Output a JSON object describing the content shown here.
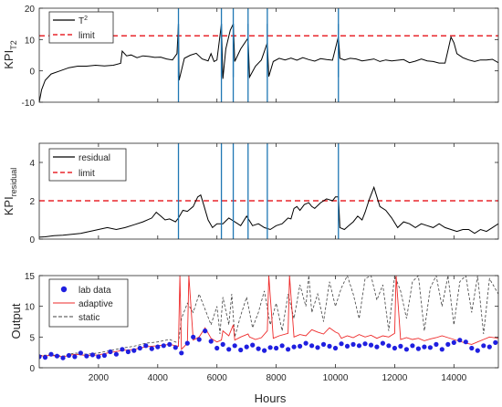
{
  "colors": {
    "axis": "#262626",
    "black_series": "#000000",
    "limit": "#e8262c",
    "vline": "#1f77b4",
    "lab_data": "#1f1fe0",
    "adaptive": "#ee2a2a",
    "static": "#404040"
  },
  "chart_data": [
    {
      "type": "line",
      "ylabel_main": "KPI",
      "ylabel_sub": "T2",
      "xlim": [
        0,
        15500
      ],
      "ylim": [
        -10,
        20
      ],
      "yticks": [
        -10,
        0,
        10,
        20
      ],
      "x_ticks_labeled": false,
      "legend_placement": "top-left",
      "legend": {
        "t2_base": "T",
        "t2_sup": "2",
        "limit": "limit"
      },
      "limit": 11.2,
      "vlines": [
        4700,
        6150,
        6550,
        7050,
        7700,
        10100
      ],
      "series": [
        {
          "name": "T²",
          "x": [
            0,
            80,
            200,
            400,
            700,
            1000,
            1300,
            1600,
            1900,
            2200,
            2500,
            2750,
            2800,
            2950,
            3100,
            3300,
            3500,
            3700,
            3900,
            4100,
            4300,
            4500,
            4650,
            4700,
            4720,
            4900,
            5100,
            5300,
            5500,
            5700,
            5800,
            5900,
            6000,
            6150,
            6200,
            6300,
            6450,
            6550,
            6600,
            6800,
            7050,
            7100,
            7300,
            7500,
            7700,
            7750,
            7900,
            8100,
            8300,
            8500,
            8700,
            8900,
            9100,
            9300,
            9500,
            9700,
            9900,
            10100,
            10150,
            10300,
            10500,
            10700,
            10900,
            11100,
            11300,
            11500,
            11700,
            11900,
            12100,
            12300,
            12500,
            12700,
            12900,
            13100,
            13300,
            13500,
            13700,
            13800,
            13900,
            14000,
            14100,
            14300,
            14500,
            14700,
            14900,
            15100,
            15300,
            15500
          ],
          "y": [
            -10,
            -6,
            -3,
            -1,
            0,
            1,
            1.5,
            1.5,
            1.8,
            1.6,
            1.8,
            2.4,
            6.3,
            4.8,
            5.1,
            4.2,
            4.8,
            4.6,
            4.3,
            4.4,
            3.8,
            3.5,
            5.5,
            15,
            -3,
            4,
            5,
            5.6,
            3.8,
            3.2,
            5.5,
            3,
            3.5,
            15,
            -2.5,
            7,
            13,
            15,
            3,
            7,
            10.5,
            -2,
            1.5,
            3.5,
            9,
            -1.8,
            3,
            4,
            3.5,
            4.1,
            3.4,
            4.2,
            3.6,
            3.1,
            3.9,
            3.6,
            3.4,
            11,
            4,
            3.5,
            4,
            3.8,
            3.2,
            3.5,
            3.8,
            3,
            3.5,
            3.2,
            3.4,
            3.6,
            2.6,
            3.1,
            3.8,
            3.2,
            3,
            2.5,
            2.5,
            6.5,
            10.8,
            9,
            5.5,
            4.2,
            3.5,
            3,
            3.5,
            3.5,
            3.7,
            2.6
          ]
        }
      ]
    },
    {
      "type": "line",
      "ylabel_main": "KPI",
      "ylabel_sub": "residual",
      "xlim": [
        0,
        15500
      ],
      "ylim": [
        0,
        5
      ],
      "yticks": [
        0,
        2,
        4
      ],
      "x_ticks_labeled": false,
      "legend_placement": "top-left",
      "legend": {
        "residual": "residual",
        "limit": "limit"
      },
      "limit": 2.0,
      "vlines": [
        4700,
        6150,
        6550,
        7050,
        7700,
        10100
      ],
      "series": [
        {
          "name": "residual",
          "x": [
            0,
            200,
            500,
            800,
            1100,
            1400,
            1700,
            2000,
            2300,
            2600,
            2900,
            3200,
            3500,
            3800,
            3950,
            4100,
            4250,
            4400,
            4600,
            4700,
            4850,
            5000,
            5200,
            5350,
            5450,
            5550,
            5700,
            5850,
            6000,
            6200,
            6400,
            6600,
            6800,
            7000,
            7200,
            7400,
            7600,
            7800,
            8000,
            8200,
            8400,
            8500,
            8600,
            8700,
            8800,
            8950,
            9100,
            9200,
            9300,
            9500,
            9700,
            9900,
            10000,
            10100,
            10150,
            10300,
            10450,
            10600,
            10750,
            10900,
            11000,
            11150,
            11300,
            11500,
            11700,
            11900,
            12100,
            12300,
            12500,
            12700,
            12900,
            13100,
            13300,
            13500,
            13700,
            13900,
            14100,
            14300,
            14500,
            14700,
            14900,
            15100,
            15300,
            15500
          ],
          "y": [
            0.1,
            0.12,
            0.18,
            0.2,
            0.25,
            0.3,
            0.4,
            0.5,
            0.6,
            0.5,
            0.6,
            0.75,
            0.9,
            1.1,
            1.4,
            1.2,
            1.0,
            1.05,
            0.9,
            1.1,
            1.5,
            1.45,
            1.7,
            2.2,
            2.3,
            1.8,
            1.0,
            0.6,
            0.8,
            0.8,
            1.1,
            0.9,
            0.7,
            1.2,
            0.7,
            0.8,
            0.6,
            0.5,
            0.7,
            0.8,
            1.1,
            1.05,
            1.6,
            1.7,
            1.5,
            1.8,
            1.9,
            1.7,
            1.6,
            1.9,
            2.1,
            2.0,
            2.2,
            2.2,
            0.6,
            0.5,
            0.7,
            0.9,
            1.2,
            1.0,
            1.4,
            2.1,
            2.7,
            1.7,
            1.5,
            1.1,
            0.6,
            0.9,
            0.8,
            0.6,
            0.8,
            0.7,
            0.6,
            0.8,
            0.6,
            0.5,
            0.4,
            0.5,
            0.5,
            0.3,
            0.5,
            0.4,
            0.6,
            0.8
          ]
        }
      ]
    },
    {
      "type": "scatter",
      "ylabel_main": "Output",
      "xlabel": "Hours",
      "xlim": [
        0,
        15500
      ],
      "ylim": [
        0,
        15
      ],
      "xticks": [
        2000,
        4000,
        6000,
        8000,
        10000,
        12000,
        14000
      ],
      "yticks": [
        0,
        5,
        10,
        15
      ],
      "legend_placement": "top-left",
      "legend": {
        "lab": "lab data",
        "adaptive": "adaptive",
        "static": "static"
      },
      "series": [
        {
          "name": "lab data",
          "x": [
            0,
            200,
            400,
            600,
            800,
            1000,
            1200,
            1400,
            1600,
            1800,
            2000,
            2200,
            2400,
            2600,
            2800,
            3000,
            3200,
            3400,
            3600,
            3800,
            4000,
            4200,
            4400,
            4600,
            4800,
            5000,
            5200,
            5400,
            5600,
            5800,
            6000,
            6200,
            6400,
            6600,
            6800,
            7000,
            7200,
            7400,
            7600,
            7800,
            8000,
            8200,
            8400,
            8600,
            8800,
            9000,
            9200,
            9400,
            9600,
            9800,
            10000,
            10200,
            10400,
            10600,
            10800,
            11000,
            11200,
            11400,
            11600,
            11800,
            12000,
            12200,
            12400,
            12600,
            12800,
            13000,
            13200,
            13400,
            13600,
            13800,
            14000,
            14200,
            14400,
            14600,
            14800,
            15000,
            15200,
            15400
          ],
          "y": [
            1.8,
            1.7,
            2.2,
            1.9,
            1.6,
            2.0,
            1.8,
            2.4,
            1.9,
            2.1,
            1.8,
            2.0,
            2.6,
            2.2,
            3.0,
            2.6,
            2.8,
            3.2,
            3.6,
            3.1,
            3.4,
            3.6,
            3.8,
            3.3,
            2.4,
            4.0,
            5.0,
            4.6,
            6.0,
            4.3,
            3.2,
            3.8,
            3.0,
            3.6,
            2.9,
            3.4,
            3.7,
            3.1,
            2.8,
            3.3,
            3.2,
            3.6,
            3.0,
            3.4,
            3.5,
            4.0,
            3.6,
            3.3,
            3.8,
            3.5,
            3.2,
            3.9,
            3.5,
            3.8,
            3.6,
            3.9,
            3.7,
            3.4,
            4.0,
            3.6,
            3.2,
            3.5,
            3.0,
            3.6,
            3.1,
            3.4,
            3.3,
            3.8,
            3.0,
            3.8,
            4.1,
            4.5,
            4.2,
            3.2,
            2.8,
            3.6,
            3.4,
            4.1
          ]
        },
        {
          "name": "adaptive",
          "x": [
            0,
            400,
            800,
            1200,
            1600,
            2000,
            2400,
            2800,
            3200,
            3600,
            4000,
            4400,
            4700,
            4750,
            4800,
            5000,
            5050,
            5200,
            5400,
            5600,
            5800,
            6000,
            6150,
            6200,
            6400,
            6550,
            6600,
            6800,
            7050,
            7100,
            7300,
            7500,
            7700,
            7750,
            7900,
            8100,
            8400,
            8450,
            8600,
            8800,
            9000,
            9200,
            9400,
            9600,
            9800,
            10000,
            10100,
            10200,
            10400,
            10600,
            10800,
            11000,
            11200,
            11400,
            11600,
            11800,
            12000,
            12050,
            12200,
            12400,
            12600,
            12800,
            13000,
            13200,
            13400,
            13600,
            13800,
            14000,
            14200,
            14400,
            14600,
            14800,
            15000,
            15200,
            15500
          ],
          "y": [
            1.9,
            2.0,
            1.8,
            2.2,
            2.0,
            2.1,
            2.5,
            2.8,
            3.0,
            3.4,
            3.6,
            3.8,
            3.5,
            15,
            3.0,
            4.0,
            15,
            4.5,
            5.0,
            6.5,
            4.8,
            4.2,
            4.5,
            6.0,
            5.2,
            7.0,
            4.5,
            5.0,
            5.5,
            5.0,
            4.6,
            4.9,
            6.0,
            15,
            4.8,
            5.2,
            5.6,
            15,
            5.0,
            5.4,
            5.2,
            6.2,
            5.8,
            5.5,
            6.5,
            5.8,
            5.6,
            4.8,
            5.2,
            4.9,
            5.4,
            5.0,
            5.3,
            4.8,
            5.2,
            5.0,
            5.6,
            15,
            4.6,
            4.9,
            4.6,
            4.8,
            4.4,
            4.7,
            4.9,
            5.2,
            4.9,
            4.6,
            4.3,
            4.0,
            3.8,
            4.2,
            4.6,
            5.0,
            4.8
          ]
        },
        {
          "name": "static",
          "x": [
            0,
            400,
            800,
            1200,
            1600,
            2000,
            2400,
            2800,
            3200,
            3600,
            4000,
            4400,
            4700,
            4800,
            5000,
            5200,
            5400,
            5600,
            5800,
            6000,
            6100,
            6200,
            6400,
            6500,
            6600,
            6800,
            7000,
            7200,
            7400,
            7600,
            7800,
            8000,
            8200,
            8400,
            8600,
            8800,
            9000,
            9100,
            9200,
            9400,
            9600,
            9800,
            10000,
            10200,
            10400,
            10600,
            10800,
            11000,
            11200,
            11400,
            11600,
            11800,
            12000,
            12200,
            12400,
            12600,
            12800,
            13000,
            13200,
            13400,
            13600,
            13800,
            14000,
            14200,
            14400,
            14600,
            14800,
            15000,
            15200,
            15500
          ],
          "y": [
            2.0,
            2.1,
            1.9,
            2.4,
            2.2,
            2.4,
            2.8,
            3.2,
            3.5,
            4.0,
            4.2,
            4.6,
            4.0,
            8.0,
            10.5,
            9.0,
            12.0,
            9.5,
            7.0,
            10.0,
            5.5,
            11.5,
            7.0,
            12.0,
            5.0,
            8.5,
            11.5,
            6.5,
            9.0,
            12.5,
            7.0,
            10.5,
            6.0,
            12.0,
            8.0,
            13.5,
            10.0,
            15,
            9.0,
            12.0,
            7.5,
            14.0,
            10.0,
            13.0,
            15,
            12.0,
            8.0,
            14.5,
            15,
            11.0,
            13.5,
            6.0,
            15,
            12.5,
            8.0,
            14.0,
            15,
            6.0,
            13.0,
            15,
            10.0,
            15,
            7.0,
            14.0,
            15,
            9.0,
            15,
            5.5,
            14.5,
            12.0
          ]
        }
      ]
    }
  ]
}
